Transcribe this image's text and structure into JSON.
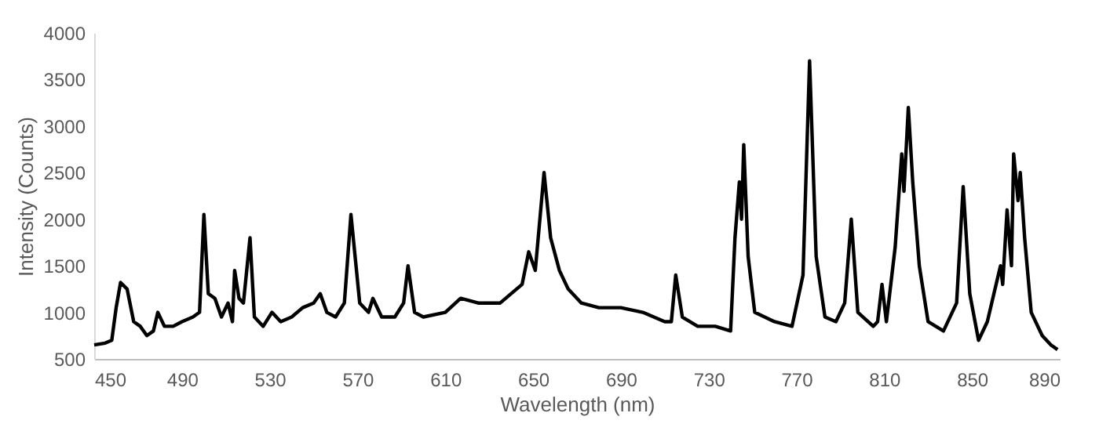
{
  "chart_data": {
    "type": "line",
    "xlabel": "Wavelength (nm)",
    "ylabel": "Intensity (Counts)",
    "xlim": [
      450,
      890
    ],
    "xticks": [
      450,
      490,
      530,
      570,
      610,
      650,
      690,
      730,
      770,
      810,
      850,
      890
    ],
    "ylim": [
      500,
      4000
    ],
    "yticks": [
      500,
      1000,
      1500,
      2000,
      2500,
      3000,
      3500,
      4000
    ],
    "grid": false,
    "marker": "none",
    "line_style": "solid",
    "series": [
      {
        "color": "#000000",
        "x": [
          450,
          455,
          458,
          460,
          462,
          465,
          468,
          471,
          474,
          477,
          479,
          482,
          486,
          490,
          495,
          498,
          500,
          502,
          505,
          508,
          511,
          513,
          514,
          516,
          518,
          521,
          523,
          527,
          531,
          535,
          540,
          545,
          550,
          553,
          556,
          560,
          564,
          567,
          571,
          575,
          577,
          581,
          587,
          591,
          593,
          596,
          600,
          610,
          617,
          625,
          635,
          645,
          648,
          651,
          655,
          658,
          662,
          666,
          672,
          680,
          690,
          700,
          710,
          713,
          715,
          718,
          725,
          733,
          740,
          742,
          744,
          745,
          746,
          748,
          751,
          760,
          768,
          773,
          776,
          779,
          783,
          788,
          792,
          795,
          798,
          805,
          807,
          809,
          811,
          815,
          818,
          819,
          821,
          823,
          826,
          830,
          837,
          843,
          846,
          849,
          853,
          857,
          860,
          863,
          864,
          866,
          868,
          869,
          871,
          872,
          874,
          877,
          882,
          886,
          889
        ],
        "values": [
          650,
          670,
          700,
          1050,
          1320,
          1250,
          900,
          850,
          750,
          800,
          1000,
          850,
          850,
          900,
          950,
          1000,
          2050,
          1200,
          1150,
          950,
          1100,
          900,
          1450,
          1150,
          1100,
          1800,
          950,
          850,
          1000,
          900,
          950,
          1050,
          1100,
          1200,
          1000,
          950,
          1100,
          2050,
          1100,
          1000,
          1150,
          950,
          950,
          1100,
          1500,
          1000,
          950,
          1000,
          1150,
          1100,
          1100,
          1300,
          1650,
          1450,
          2500,
          1800,
          1450,
          1250,
          1100,
          1050,
          1050,
          1000,
          900,
          900,
          1400,
          950,
          850,
          850,
          800,
          1800,
          2400,
          2000,
          2800,
          1600,
          1000,
          900,
          850,
          1400,
          3700,
          1600,
          950,
          900,
          1100,
          2000,
          1000,
          850,
          900,
          1300,
          900,
          1700,
          2700,
          2300,
          3200,
          2400,
          1500,
          900,
          800,
          1100,
          2350,
          1200,
          700,
          900,
          1200,
          1500,
          1300,
          2100,
          1500,
          2700,
          2200,
          2500,
          1800,
          1000,
          750,
          650,
          600
        ]
      }
    ]
  }
}
